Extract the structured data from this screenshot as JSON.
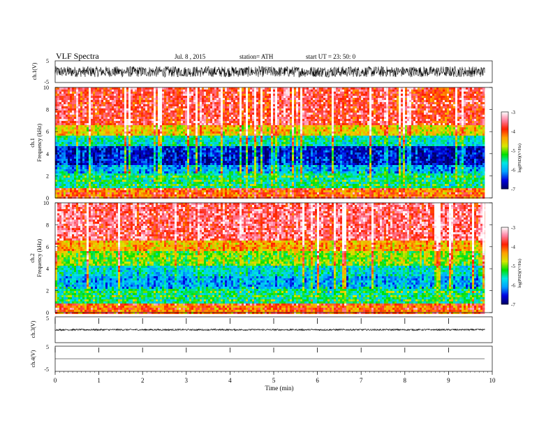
{
  "header": {
    "title": "VLF  Spectra",
    "date": "Jul.  8  , 2015",
    "station": "station= ATH",
    "start": "start  UT  =    23: 50: 0"
  },
  "chart_data": [
    {
      "type": "line",
      "ylabel": "ch.1(V)",
      "ylim": [
        -5,
        5
      ],
      "y_ticks": [
        "5",
        "-5"
      ],
      "description_values": {
        "baseline": 0,
        "noise_amplitude": 2.5
      }
    },
    {
      "type": "heatmap",
      "ylabel_top": "ch.1",
      "ylabel": "Frequency  (kHz)",
      "ylim": [
        0,
        10
      ],
      "y_ticks": [
        "0",
        "2",
        "4",
        "6",
        "8",
        "10"
      ],
      "colorbar": {
        "label": "log(PSD)(V²/Hz)",
        "range": [
          -7,
          -3
        ],
        "ticks": [
          "-3",
          "-4",
          "-5",
          "-6",
          "-7"
        ]
      },
      "bands": [
        {
          "from": 0,
          "to": 0.9,
          "level": -4.2
        },
        {
          "from": 0.9,
          "to": 2.3,
          "level": -5.5
        },
        {
          "from": 2.3,
          "to": 3.0,
          "level": -6.0
        },
        {
          "from": 3.0,
          "to": 4.8,
          "level": -6.6
        },
        {
          "from": 4.8,
          "to": 5.6,
          "level": -5.6
        },
        {
          "from": 5.6,
          "to": 6.6,
          "level": -4.6
        },
        {
          "from": 6.6,
          "to": 10,
          "level": -3.8
        }
      ]
    },
    {
      "type": "heatmap",
      "ylabel_top": "ch.2",
      "ylabel": "Frequency  (kHz)",
      "ylim": [
        0,
        10
      ],
      "y_ticks": [
        "0",
        "2",
        "4",
        "6",
        "8",
        "10"
      ],
      "colorbar": {
        "label": "log(PSD)(V²/Hz)",
        "range": [
          -7,
          -3
        ],
        "ticks": [
          "-3",
          "-4",
          "-5",
          "-6",
          "-7"
        ]
      },
      "bands": [
        {
          "from": 0,
          "to": 0.9,
          "level": -4.2
        },
        {
          "from": 0.9,
          "to": 2.3,
          "level": -5.5
        },
        {
          "from": 2.3,
          "to": 3.4,
          "level": -6.0
        },
        {
          "from": 3.4,
          "to": 4.4,
          "level": -5.7
        },
        {
          "from": 4.4,
          "to": 5.6,
          "level": -5.0
        },
        {
          "from": 5.6,
          "to": 6.6,
          "level": -4.4
        },
        {
          "from": 6.6,
          "to": 10,
          "level": -3.6
        }
      ]
    },
    {
      "type": "line",
      "ylabel": "ch.3(V)",
      "ylim": [
        -5,
        5
      ],
      "y_ticks": [
        "5"
      ],
      "description_values": {
        "baseline": 0,
        "noise_amplitude": 0.3
      }
    },
    {
      "type": "line",
      "ylabel": "ch.4(V)",
      "ylim": [
        -5,
        5
      ],
      "y_ticks": [
        "5",
        "-5"
      ],
      "description_values": {
        "baseline": 0,
        "noise_amplitude": 0
      }
    }
  ],
  "x_axis": {
    "label": "Time  (min)",
    "range": [
      0,
      10
    ],
    "ticks": [
      "0",
      "1",
      "2",
      "3",
      "4",
      "5",
      "6",
      "7",
      "8",
      "9",
      "10"
    ],
    "data_end": 9.83
  },
  "colors": {
    "colormap": [
      "#000066",
      "#0000e0",
      "#00a0ff",
      "#00e6e6",
      "#00e000",
      "#d8e600",
      "#ffa000",
      "#ff1e00",
      "#ff80a0",
      "#ffffff"
    ]
  }
}
